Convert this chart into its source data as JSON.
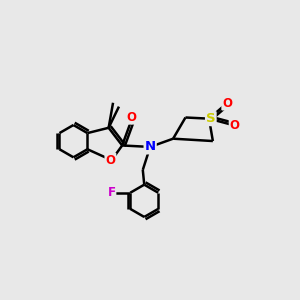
{
  "background_color": "#e8e8e8",
  "bond_color": "#000000",
  "bond_width": 1.8,
  "atom_colors": {
    "O": "#ff0000",
    "N": "#0000ff",
    "S": "#cccc00",
    "F": "#cc00cc",
    "C": "#000000"
  },
  "figsize": [
    3.0,
    3.0
  ],
  "dpi": 100
}
